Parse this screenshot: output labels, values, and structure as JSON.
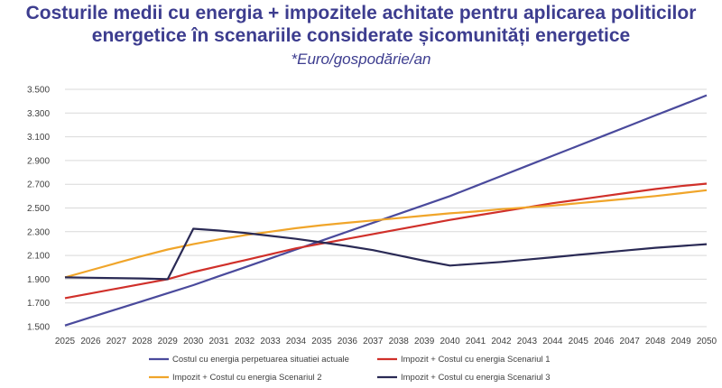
{
  "chart_data": {
    "type": "line",
    "title_line1": "Costurile medii cu energia + impozitele achitate pentru aplicarea politicilor",
    "title_line2": "energetice în scenariile considerate șicomunități energetice",
    "subtitle": "*Euro/gospodărie/an",
    "xlabel": "",
    "ylabel": "",
    "ylim": [
      1500,
      3500
    ],
    "yticks": [
      1500,
      1700,
      1900,
      2100,
      2300,
      2500,
      2700,
      2900,
      3100,
      3300,
      3500
    ],
    "ytick_labels": [
      "1.500",
      "1.700",
      "1.900",
      "2.100",
      "2.300",
      "2.500",
      "2.700",
      "2.900",
      "3.100",
      "3.300",
      "3.500"
    ],
    "grid": true,
    "legend_position": "bottom",
    "categories": [
      "2025",
      "2026",
      "2027",
      "2028",
      "2029",
      "2030",
      "2031",
      "2032",
      "2033",
      "2034",
      "2035",
      "2036",
      "2037",
      "2038",
      "2039",
      "2040",
      "2041",
      "2042",
      "2043",
      "2044",
      "2045",
      "2046",
      "2047",
      "2048",
      "2049",
      "2050"
    ],
    "series": [
      {
        "name": "Costul cu energia perpetuarea situatiei actuale",
        "color": "#4a4a9c",
        "values": [
          1510,
          1578,
          1646,
          1714,
          1782,
          1850,
          1925,
          2000,
          2075,
          2150,
          2225,
          2300,
          2375,
          2450,
          2525,
          2600,
          2685,
          2770,
          2855,
          2940,
          3025,
          3110,
          3195,
          3280,
          3365,
          3450
        ]
      },
      {
        "name": "Impozit + Costul cu energia Scenariul 1",
        "color": "#d0302a",
        "values": [
          1740,
          1780,
          1820,
          1860,
          1900,
          1960,
          2010,
          2060,
          2110,
          2160,
          2200,
          2240,
          2280,
          2320,
          2360,
          2400,
          2435,
          2470,
          2505,
          2540,
          2570,
          2600,
          2630,
          2660,
          2685,
          2705
        ]
      },
      {
        "name": "Impozit + Costul cu energia Scenariul 2",
        "color": "#f0a52a",
        "values": [
          1915,
          1975,
          2035,
          2095,
          2150,
          2195,
          2235,
          2270,
          2300,
          2330,
          2355,
          2375,
          2395,
          2415,
          2435,
          2455,
          2470,
          2490,
          2505,
          2520,
          2540,
          2560,
          2580,
          2600,
          2625,
          2650
        ]
      },
      {
        "name": "Impozit + Costul cu energia Scenariul 3",
        "color": "#2a2a55",
        "values": [
          1915,
          1912,
          1909,
          1906,
          1900,
          2325,
          2310,
          2290,
          2265,
          2240,
          2210,
          2180,
          2145,
          2100,
          2055,
          2015,
          2030,
          2045,
          2065,
          2085,
          2105,
          2125,
          2145,
          2165,
          2180,
          2195
        ]
      }
    ]
  }
}
